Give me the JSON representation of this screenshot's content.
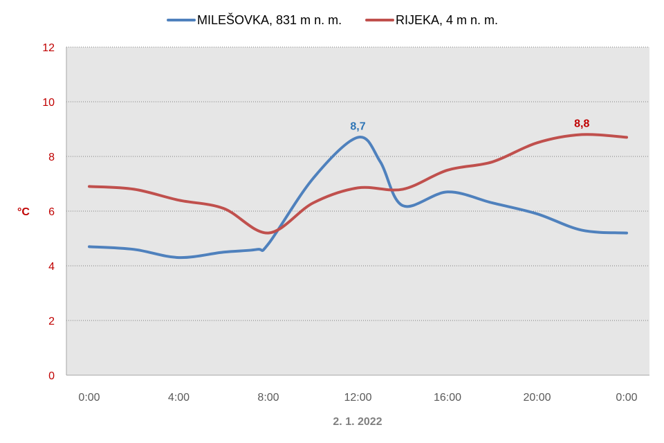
{
  "chart_data": {
    "type": "line",
    "xlabel": "2. 1. 2022",
    "ylabel": "°C",
    "ylim": [
      0,
      12
    ],
    "yticks": [
      "0",
      "2",
      "4",
      "6",
      "8",
      "10",
      "12"
    ],
    "xlim": [
      0,
      24
    ],
    "xticks": [
      {
        "value": 0,
        "label": "0:00"
      },
      {
        "value": 4,
        "label": "4:00"
      },
      {
        "value": 8,
        "label": "8:00"
      },
      {
        "value": 12,
        "label": "12:00"
      },
      {
        "value": 16,
        "label": "16:00"
      },
      {
        "value": 20,
        "label": "20:00"
      },
      {
        "value": 24,
        "label": "0:00"
      }
    ],
    "grid": true,
    "legend_position": "top-center",
    "series": [
      {
        "name": "MILEŠOVKA, 831 m n. m.",
        "color": "#4f81bd",
        "label_color": "#2e75b6",
        "x": [
          0,
          2,
          4,
          6,
          7.5,
          8,
          10,
          12,
          13,
          14,
          16,
          18,
          20,
          22,
          24
        ],
        "values": [
          4.7,
          4.6,
          4.3,
          4.5,
          4.6,
          4.8,
          7.2,
          8.7,
          7.8,
          6.2,
          6.7,
          6.3,
          5.9,
          5.3,
          5.2
        ],
        "data_label": {
          "x": 12,
          "y": 8.7,
          "text": "8,7"
        }
      },
      {
        "name": "RIJEKA, 4 m n. m.",
        "color": "#c0504d",
        "label_color": "#c00000",
        "x": [
          0,
          2,
          4,
          6,
          8,
          10,
          12,
          14,
          16,
          18,
          20,
          22,
          24
        ],
        "values": [
          6.9,
          6.8,
          6.4,
          6.1,
          5.2,
          6.3,
          6.85,
          6.8,
          7.5,
          7.8,
          8.5,
          8.8,
          8.7
        ],
        "data_label": {
          "x": 22,
          "y": 8.8,
          "text": "8,8"
        }
      }
    ]
  }
}
